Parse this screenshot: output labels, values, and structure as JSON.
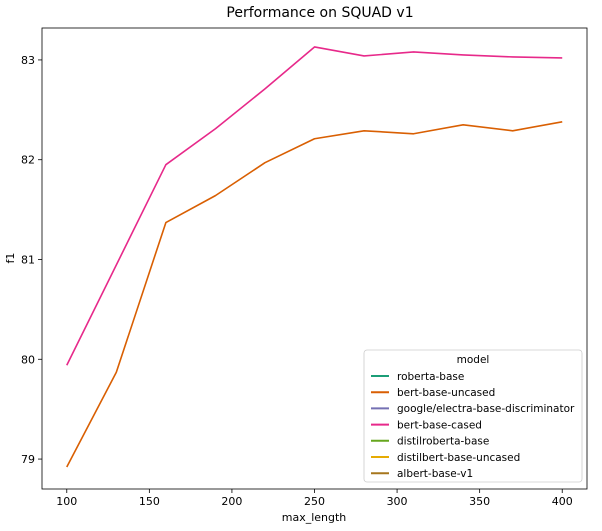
{
  "chart_data": {
    "type": "line",
    "title": "Performance on SQUAD v1",
    "xlabel": "max_length",
    "ylabel": "f1",
    "xlim": [
      85,
      415
    ],
    "ylim": [
      78.7,
      83.32
    ],
    "xticks": [
      100,
      150,
      200,
      250,
      300,
      350,
      400
    ],
    "yticks": [
      79,
      80,
      81,
      82,
      83
    ],
    "grid": false,
    "legend": {
      "title": "model",
      "placement": "bottom-right",
      "entries": [
        {
          "name": "roberta-base",
          "color": "#1b9e77"
        },
        {
          "name": "bert-base-uncased",
          "color": "#d95f02"
        },
        {
          "name": "google/electra-base-discriminator",
          "color": "#7570b3"
        },
        {
          "name": "bert-base-cased",
          "color": "#e7298a"
        },
        {
          "name": "distilroberta-base",
          "color": "#66a61e"
        },
        {
          "name": "distilbert-base-uncased",
          "color": "#e6ab02"
        },
        {
          "name": "albert-base-v1",
          "color": "#a6761d"
        }
      ]
    },
    "series": [
      {
        "name": "bert-base-cased",
        "color": "#e7298a",
        "x": [
          100,
          160,
          190,
          220,
          250,
          280,
          310,
          340,
          370,
          400
        ],
        "y": [
          79.94,
          81.95,
          82.31,
          82.71,
          83.13,
          83.04,
          83.08,
          83.05,
          83.03,
          83.02
        ]
      },
      {
        "name": "bert-base-uncased",
        "color": "#d95f02",
        "x": [
          100,
          130,
          160,
          190,
          220,
          250,
          280,
          310,
          340,
          370,
          400
        ],
        "y": [
          78.92,
          79.87,
          81.37,
          81.64,
          81.97,
          82.21,
          82.29,
          82.26,
          82.35,
          82.29,
          82.38
        ]
      }
    ]
  }
}
